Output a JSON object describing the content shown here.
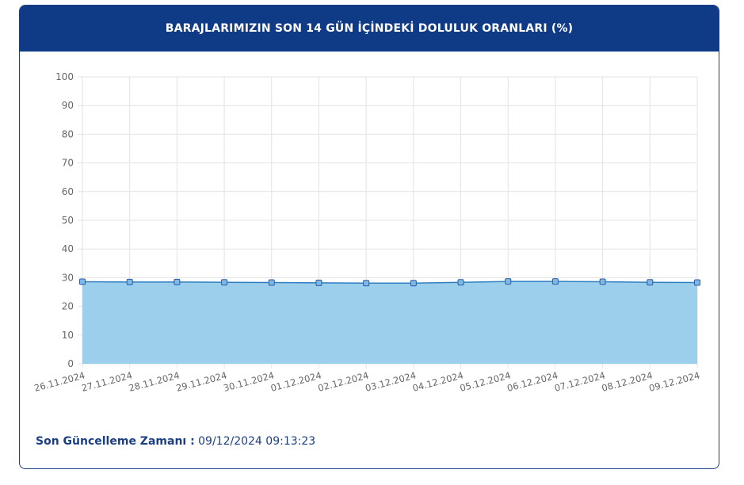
{
  "header": {
    "title": "BARAJLARIMIZIN SON 14 GÜN İÇİNDEKİ DOLULUK ORANLARI (%)"
  },
  "footer": {
    "label": "Son Güncelleme Zamanı :",
    "value": "09/12/2024 09:13:23"
  },
  "colors": {
    "header_bg": "#0f3a86",
    "line": "#2f7fc1",
    "fill": "#9ccfec",
    "point_fill": "#7fb8e3",
    "point_stroke": "#2a5ea8"
  },
  "chart_data": {
    "type": "area",
    "title": "BARAJLARIMIZIN SON 14 GÜN İÇİNDEKİ DOLULUK ORANLARI (%)",
    "xlabel": "",
    "ylabel": "",
    "ylim": [
      0,
      100
    ],
    "yticks": [
      0,
      10,
      20,
      30,
      40,
      50,
      60,
      70,
      80,
      90,
      100
    ],
    "grid": true,
    "legend": "none",
    "categories": [
      "26.11.2024",
      "27.11.2024",
      "28.11.2024",
      "29.11.2024",
      "30.11.2024",
      "01.12.2024",
      "02.12.2024",
      "03.12.2024",
      "04.12.2024",
      "05.12.2024",
      "06.12.2024",
      "07.12.2024",
      "08.12.2024",
      "09.12.2024"
    ],
    "values": [
      28.6,
      28.5,
      28.5,
      28.4,
      28.3,
      28.2,
      28.1,
      28.1,
      28.4,
      28.7,
      28.7,
      28.6,
      28.4,
      28.3
    ]
  }
}
